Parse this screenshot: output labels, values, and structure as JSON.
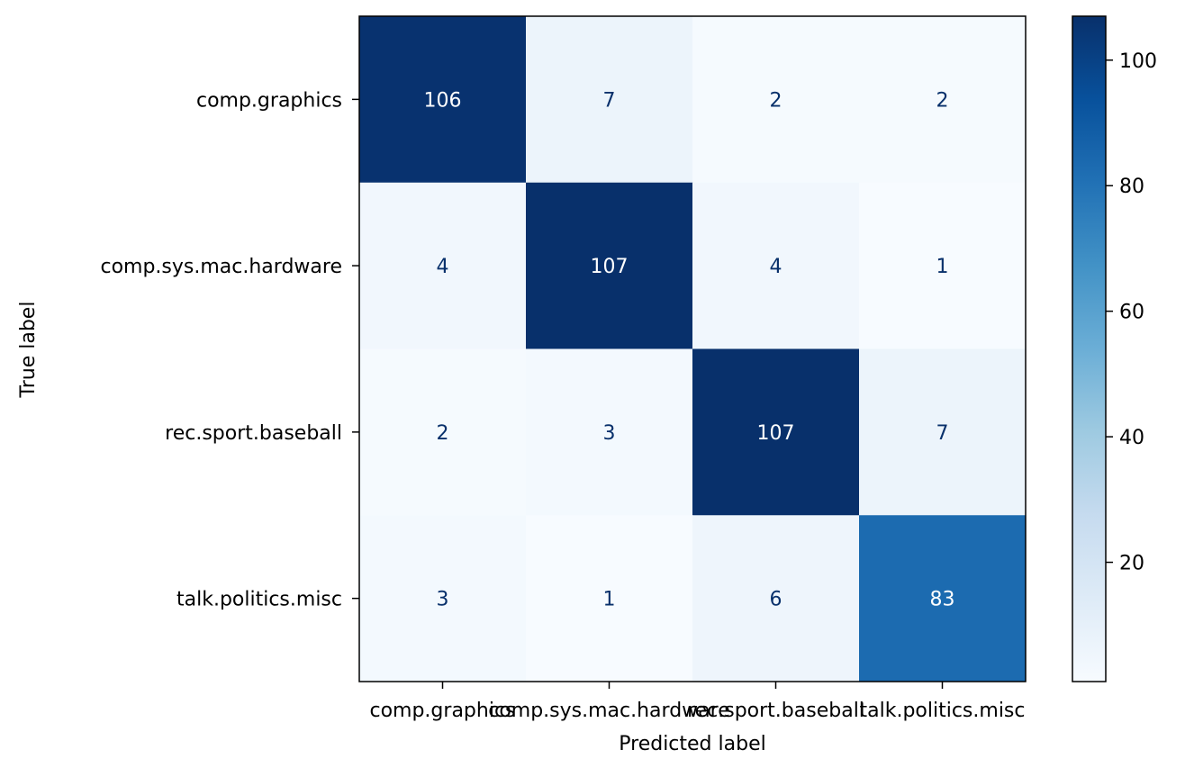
{
  "chart_data": {
    "type": "heatmap",
    "title": "",
    "xlabel": "Predicted label",
    "ylabel": "True label",
    "x_categories": [
      "comp.graphics",
      "comp.sys.mac.hardware",
      "rec.sport.baseball",
      "talk.politics.misc"
    ],
    "y_categories": [
      "comp.graphics",
      "comp.sys.mac.hardware",
      "rec.sport.baseball",
      "talk.politics.misc"
    ],
    "matrix": [
      [
        106,
        7,
        2,
        2
      ],
      [
        4,
        107,
        4,
        1
      ],
      [
        2,
        3,
        107,
        7
      ],
      [
        3,
        1,
        6,
        83
      ]
    ],
    "colorscale": "Blues",
    "colorbar": {
      "min": 1,
      "max": 107,
      "ticks": [
        "20",
        "40",
        "60",
        "80",
        "100"
      ]
    }
  }
}
